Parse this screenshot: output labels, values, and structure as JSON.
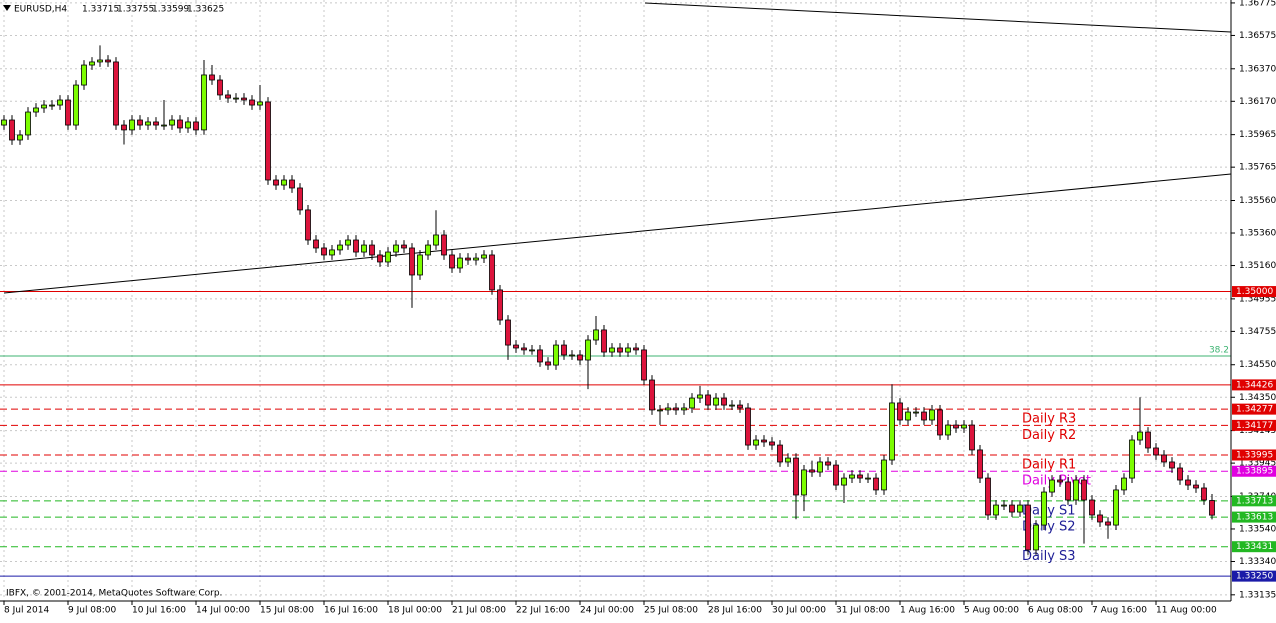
{
  "chart_data": {
    "type": "candlestick",
    "title": "EURUSD,H4",
    "annotation": "IBFX, © 2001-2014, MetaQuotes Software Corp.",
    "categories": [
      "8 Jul 2014",
      null,
      null,
      null,
      null,
      null,
      null,
      null,
      "9 Jul 08:00",
      null,
      null,
      null,
      null,
      null,
      null,
      null,
      "10 Jul 16:00",
      null,
      null,
      null,
      null,
      null,
      null,
      null,
      "14 Jul 00:00",
      null,
      null,
      null,
      null,
      null,
      null,
      null,
      "15 Jul 08:00",
      null,
      null,
      null,
      null,
      null,
      null,
      null,
      "16 Jul 16:00",
      null,
      null,
      null,
      null,
      null,
      null,
      null,
      "18 Jul 00:00",
      null,
      null,
      null,
      null,
      null,
      null,
      null,
      "21 Jul 08:00",
      null,
      null,
      null,
      null,
      null,
      null,
      null,
      "22 Jul 16:00",
      null,
      null,
      null,
      null,
      null,
      null,
      null,
      "24 Jul 00:00",
      null,
      null,
      null,
      null,
      null,
      null,
      null,
      "25 Jul 08:00",
      null,
      null,
      null,
      null,
      null,
      null,
      null,
      "28 Jul 16:00",
      null,
      null,
      null,
      null,
      null,
      null,
      null,
      "30 Jul 00:00",
      null,
      null,
      null,
      null,
      null,
      null,
      null,
      "31 Jul 08:00",
      null,
      null,
      null,
      null,
      null,
      null,
      null,
      "1 Aug 16:00",
      null,
      null,
      null,
      null,
      null,
      null,
      null,
      "5 Aug 00:00",
      null,
      null,
      null,
      null,
      null,
      null,
      null,
      "6 Aug 08:00",
      null,
      null,
      null,
      null,
      null,
      null,
      null,
      "7 Aug 16:00",
      null,
      null,
      null,
      null,
      null,
      null,
      null,
      "11 Aug 00:00",
      null,
      null,
      null,
      null,
      null,
      null,
      null
    ],
    "open": [
      1.36024,
      1.36055,
      1.35932,
      1.35963,
      1.36104,
      1.36129,
      1.36147,
      1.36147,
      1.36178,
      1.36024,
      1.3627,
      1.36393,
      1.36412,
      1.36424,
      1.36412,
      1.36024,
      1.35994,
      1.36055,
      1.36024,
      1.36043,
      1.36024,
      1.36024,
      1.36055,
      1.36006,
      1.36043,
      1.35994,
      1.36332,
      1.36301,
      1.36209,
      1.3619,
      1.3619,
      1.36178,
      1.36147,
      1.36166,
      1.35686,
      1.35655,
      1.35686,
      1.35637,
      1.35502,
      1.35317,
      1.35268,
      1.35225,
      1.35256,
      1.35286,
      1.35317,
      1.35243,
      1.35286,
      1.35225,
      1.35182,
      1.35243,
      1.35286,
      1.35268,
      1.35102,
      1.35225,
      1.35286,
      1.35348,
      1.35225,
      1.35145,
      1.35206,
      1.35194,
      1.35206,
      1.35225,
      1.3501,
      1.34825,
      1.34671,
      1.34653,
      1.34641,
      1.34641,
      1.34567,
      1.34548,
      1.34671,
      1.3461,
      1.3461,
      1.34579,
      1.34702,
      1.34764,
      1.34628,
      1.34653,
      1.34628,
      1.34653,
      1.34641,
      1.34456,
      1.34272,
      1.34272,
      1.34284,
      1.34272,
      1.34284,
      1.34345,
      1.34364,
      1.34302,
      1.34345,
      1.34302,
      1.34302,
      1.34284,
      1.34056,
      1.34087,
      1.34075,
      1.34056,
      1.33952,
      1.33976,
      1.33749,
      1.33903,
      1.3389,
      1.33952,
      1.33933,
      1.3381,
      1.33853,
      1.33872,
      1.33853,
      1.33853,
      1.3378,
      1.33964,
      1.34315,
      1.3421,
      1.34259,
      1.34259,
      1.3421,
      1.34272,
      1.34118,
      1.34179,
      1.34161,
      1.34179,
      1.34026,
      1.33853,
      1.33626,
      1.33687,
      1.33687,
      1.33644,
      1.33687,
      1.33411,
      1.33564,
      1.33767,
      1.33841,
      1.33829,
      1.33718,
      1.33841,
      1.33718,
      1.33626,
      1.33583,
      1.33564,
      1.3378,
      1.33853,
      1.34087,
      1.34136,
      1.34038,
      1.33995,
      1.33952,
      1.33915,
      1.33841,
      1.3381,
      1.33792,
      1.33715
    ],
    "high": [
      1.36085,
      1.36085,
      1.35993,
      1.36134,
      1.36159,
      1.36177,
      1.36177,
      1.36208,
      1.36208,
      1.363,
      1.36423,
      1.36442,
      1.36514,
      1.36454,
      1.36442,
      1.36054,
      1.36085,
      1.36085,
      1.36073,
      1.36073,
      1.36178,
      1.36085,
      1.36085,
      1.36073,
      1.36073,
      1.36424,
      1.36393,
      1.36331,
      1.36239,
      1.3622,
      1.3622,
      1.36208,
      1.3627,
      1.36196,
      1.35716,
      1.35716,
      1.35716,
      1.35667,
      1.35532,
      1.35347,
      1.35298,
      1.35286,
      1.35316,
      1.35347,
      1.35347,
      1.35316,
      1.35316,
      1.35255,
      1.35273,
      1.35316,
      1.35316,
      1.35298,
      1.35255,
      1.35316,
      1.355,
      1.35378,
      1.35255,
      1.35236,
      1.35236,
      1.35236,
      1.35255,
      1.35255,
      1.3504,
      1.34855,
      1.34701,
      1.34683,
      1.34671,
      1.34671,
      1.34597,
      1.34701,
      1.34701,
      1.3464,
      1.3464,
      1.34732,
      1.3485,
      1.34794,
      1.34683,
      1.34683,
      1.34683,
      1.34683,
      1.34671,
      1.34486,
      1.34302,
      1.34314,
      1.34314,
      1.34314,
      1.34375,
      1.3442,
      1.34394,
      1.34375,
      1.34375,
      1.34332,
      1.34332,
      1.34314,
      1.34117,
      1.34117,
      1.34105,
      1.34086,
      1.34006,
      1.34006,
      1.33933,
      1.3396,
      1.33982,
      1.33982,
      1.33963,
      1.33883,
      1.33902,
      1.33902,
      1.33883,
      1.33883,
      1.33994,
      1.3443,
      1.34345,
      1.34289,
      1.34289,
      1.34289,
      1.34302,
      1.34302,
      1.34209,
      1.34209,
      1.34209,
      1.34209,
      1.34056,
      1.33883,
      1.33717,
      1.33717,
      1.33717,
      1.33717,
      1.33717,
      1.33594,
      1.33797,
      1.33871,
      1.33871,
      1.33859,
      1.33871,
      1.33871,
      1.33748,
      1.33656,
      1.33613,
      1.3381,
      1.33883,
      1.34117,
      1.3435,
      1.34166,
      1.34068,
      1.34025,
      1.33982,
      1.33945,
      1.33871,
      1.3384,
      1.33822,
      1.33755
    ],
    "low": [
      1.35994,
      1.35902,
      1.35902,
      1.35933,
      1.36074,
      1.36099,
      1.36117,
      1.36117,
      1.35994,
      1.35994,
      1.3624,
      1.36363,
      1.36382,
      1.36382,
      1.35994,
      1.35904,
      1.35964,
      1.35994,
      1.35994,
      1.35994,
      1.35994,
      1.35994,
      1.35976,
      1.35976,
      1.35964,
      1.35964,
      1.36271,
      1.36179,
      1.3616,
      1.3616,
      1.36148,
      1.36117,
      1.36117,
      1.35656,
      1.35625,
      1.35625,
      1.35607,
      1.35472,
      1.35287,
      1.35238,
      1.35195,
      1.35195,
      1.35226,
      1.35256,
      1.35213,
      1.35213,
      1.35195,
      1.35152,
      1.35152,
      1.35213,
      1.35238,
      1.349,
      1.35072,
      1.35195,
      1.35256,
      1.35195,
      1.35115,
      1.35115,
      1.35164,
      1.35164,
      1.35176,
      1.3498,
      1.34795,
      1.3458,
      1.34623,
      1.34611,
      1.34611,
      1.34537,
      1.34518,
      1.34518,
      1.3458,
      1.3458,
      1.34549,
      1.344,
      1.34672,
      1.34598,
      1.34598,
      1.34598,
      1.34598,
      1.34611,
      1.34426,
      1.34242,
      1.3418,
      1.34242,
      1.34242,
      1.34242,
      1.34254,
      1.34315,
      1.34272,
      1.34272,
      1.34272,
      1.34272,
      1.34254,
      1.34026,
      1.34026,
      1.34045,
      1.34026,
      1.33922,
      1.33922,
      1.336,
      1.3365,
      1.3386,
      1.3386,
      1.33903,
      1.3378,
      1.337,
      1.33823,
      1.33823,
      1.33823,
      1.3375,
      1.3375,
      1.33934,
      1.3418,
      1.3418,
      1.34229,
      1.3418,
      1.3418,
      1.34088,
      1.34088,
      1.34131,
      1.34131,
      1.33996,
      1.33823,
      1.33596,
      1.33596,
      1.33657,
      1.33614,
      1.33614,
      1.33381,
      1.33381,
      1.33534,
      1.33737,
      1.33799,
      1.33688,
      1.33688,
      1.3345,
      1.33596,
      1.33553,
      1.3348,
      1.33534,
      1.3375,
      1.33823,
      1.34057,
      1.34008,
      1.33965,
      1.33922,
      1.33885,
      1.33811,
      1.3378,
      1.33762,
      1.33688,
      1.33599
    ],
    "close": [
      1.36055,
      1.35932,
      1.35963,
      1.36104,
      1.36129,
      1.36147,
      1.36147,
      1.36178,
      1.36024,
      1.3627,
      1.36393,
      1.36412,
      1.36424,
      1.36412,
      1.36024,
      1.35994,
      1.36055,
      1.36024,
      1.36043,
      1.36024,
      1.36024,
      1.36055,
      1.36006,
      1.36043,
      1.35994,
      1.36332,
      1.36301,
      1.36209,
      1.3619,
      1.3619,
      1.36178,
      1.36147,
      1.36166,
      1.35686,
      1.35655,
      1.35686,
      1.35637,
      1.35502,
      1.35317,
      1.35268,
      1.35225,
      1.35256,
      1.35286,
      1.35317,
      1.35243,
      1.35286,
      1.35225,
      1.35182,
      1.35243,
      1.35286,
      1.35268,
      1.35102,
      1.35225,
      1.35286,
      1.35348,
      1.35225,
      1.35145,
      1.35206,
      1.35194,
      1.35206,
      1.35225,
      1.3501,
      1.34825,
      1.34671,
      1.34653,
      1.34641,
      1.34641,
      1.34567,
      1.34548,
      1.34671,
      1.3461,
      1.3461,
      1.34579,
      1.34702,
      1.34764,
      1.34628,
      1.34653,
      1.34628,
      1.34653,
      1.34641,
      1.34456,
      1.34272,
      1.34272,
      1.34284,
      1.34272,
      1.34284,
      1.34345,
      1.34364,
      1.34302,
      1.34345,
      1.34302,
      1.34302,
      1.34284,
      1.34056,
      1.34087,
      1.34075,
      1.34056,
      1.33952,
      1.33976,
      1.33749,
      1.33903,
      1.3389,
      1.33952,
      1.33933,
      1.3381,
      1.33853,
      1.33872,
      1.33853,
      1.33853,
      1.3378,
      1.33964,
      1.34315,
      1.3421,
      1.34259,
      1.34259,
      1.3421,
      1.34272,
      1.34118,
      1.34179,
      1.34161,
      1.34179,
      1.34026,
      1.33853,
      1.33626,
      1.33687,
      1.33687,
      1.33644,
      1.33687,
      1.33411,
      1.33564,
      1.33767,
      1.33841,
      1.33829,
      1.33718,
      1.33841,
      1.33718,
      1.33626,
      1.33583,
      1.33564,
      1.3378,
      1.33853,
      1.34087,
      1.34136,
      1.34038,
      1.33995,
      1.33952,
      1.33915,
      1.33841,
      1.3381,
      1.33792,
      1.33718,
      1.33625
    ],
    "up_color": "#7cfc00",
    "down_color": "#dc143c",
    "ylim": [
      1.33097,
      1.36793
    ],
    "yticks": [
      1.36775,
      1.36575,
      {
        "value": 1.3637,
        "label": "1.36370"
      },
      {
        "value": 1.3617,
        "label": "1.36170"
      },
      1.35965,
      1.35765,
      {
        "value": 1.3556,
        "label": "1.35560"
      },
      {
        "value": 1.3536,
        "label": "1.35360"
      },
      {
        "value": 1.3516,
        "label": "1.35160"
      },
      1.34955,
      1.34755,
      {
        "value": 1.3455,
        "label": "1.34550"
      },
      {
        "value": 1.3435,
        "label": "1.34350"
      },
      1.34145,
      1.33945,
      {
        "value": 1.3374,
        "label": "1.33740"
      },
      {
        "value": 1.3354,
        "label": "1.33540"
      },
      {
        "value": 1.3334,
        "label": "1.33340"
      },
      1.33135
    ],
    "grid": true,
    "levels": [
      {
        "value": 1.35,
        "label": "1.35000",
        "color": "#e00000",
        "dash": false
      },
      {
        "value": 1.34426,
        "color": "#e00000",
        "dash": false
      },
      {
        "value": 1.34277,
        "color": "#e00000",
        "dash": true,
        "name": "Daily R3",
        "name_color": "#e00000"
      },
      {
        "value": 1.34177,
        "color": "#e00000",
        "dash": true,
        "name": "Daily R2",
        "name_color": "#e00000"
      },
      {
        "value": 1.33995,
        "color": "#e00000",
        "dash": true,
        "name": "Daily R1",
        "name_color": "#e00000"
      },
      {
        "value": 1.33895,
        "color": "#e000e0",
        "dash": true,
        "name": "Daily Pivot",
        "name_color": "#e000e0"
      },
      {
        "value": 1.33713,
        "color": "#22b822",
        "dash": true,
        "name": "Daily S1",
        "name_color": "#1e1e96"
      },
      {
        "value": 1.33613,
        "color": "#22b822",
        "dash": true,
        "name": "Daily S2",
        "name_color": "#1e1e96"
      },
      {
        "value": 1.33431,
        "color": "#22b822",
        "dash": true,
        "name": "Daily S3",
        "name_color": "#1e1e96"
      },
      {
        "value": 1.3325,
        "label": "1.33250",
        "color": "#1a1aa8",
        "dash": false
      }
    ],
    "fibo": {
      "value": 1.34604,
      "level": 38.2,
      "color": "#3cb371"
    }
  }
}
